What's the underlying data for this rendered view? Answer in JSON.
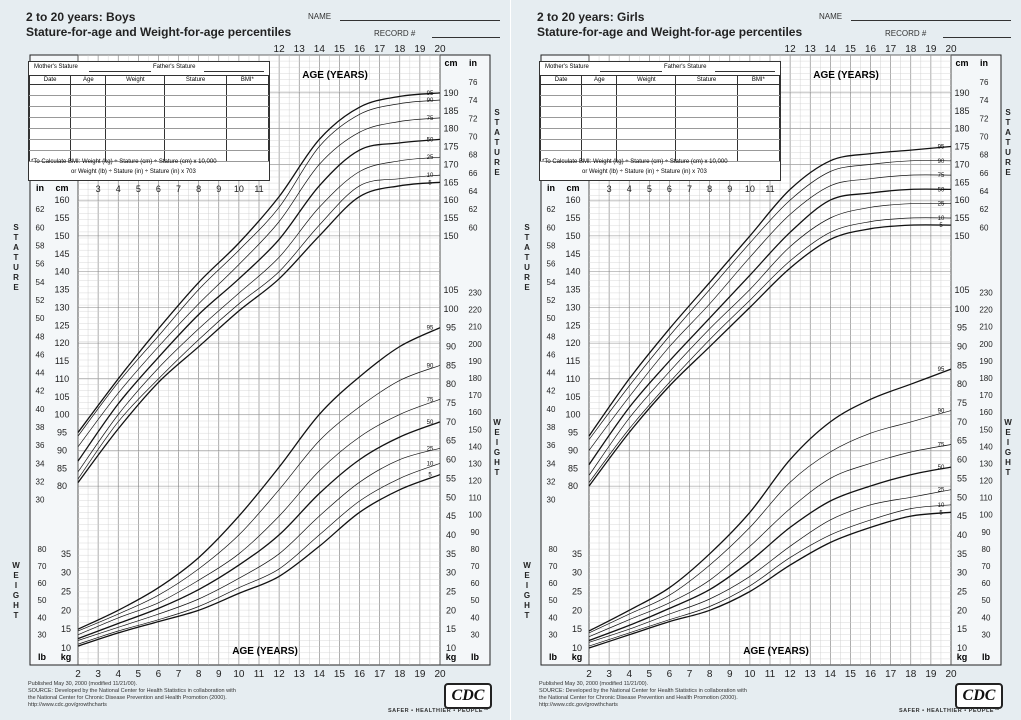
{
  "panels": [
    {
      "title_line1": "2 to 20 years: Boys",
      "title_line2": "Stature-for-age and Weight-for-age percentiles",
      "name_label": "NAME",
      "record_label": "RECORD #",
      "info_box": {
        "mothers_stature": "Mother's Stature",
        "fathers_stature": "Father's Stature",
        "columns": [
          "Date",
          "Age",
          "Weight",
          "Stature",
          "BMI*"
        ],
        "bmi_note_1": "*To Calculate BMI: Weight (kg) ÷ Stature (cm) ÷ Stature (cm) x 10,000",
        "bmi_note_2": "or Weight (lb) ÷ Stature (in) ÷ Stature (in) x 703"
      },
      "axis_labels": {
        "age_top": "AGE (YEARS)",
        "age_bottom": "AGE (YEARS)",
        "cm": "cm",
        "in": "in",
        "kg": "kg",
        "lb": "lb",
        "stature": "STATURE",
        "weight": "WEIGHT"
      },
      "footer": {
        "line1": "Published May 30, 2000 (modified 11/21/00).",
        "line2": "SOURCE: Developed by the National Center for Health Statistics in collaboration with",
        "line3": "the National Center for Chronic Disease Prevention and Health Promotion (2000).",
        "line4": "http://www.cdc.gov/growthcharts",
        "logo": "CDC",
        "tagline": "SAFER • HEALTHIER • PEOPLE™"
      },
      "chart_data": [
        {
          "type": "line",
          "title": "Stature-for-age",
          "xlabel": "AGE (YEARS)",
          "ylabel": "STATURE",
          "xlim": [
            2,
            20
          ],
          "ylim": [
            75,
            195
          ],
          "y_unit": "cm",
          "x": [
            2,
            4,
            6,
            8,
            10,
            12,
            14,
            16,
            18,
            20
          ],
          "series": [
            {
              "name": "95",
              "values": [
                95,
                110,
                124,
                137,
                148,
                161,
                177,
                186,
                189,
                190
              ]
            },
            {
              "name": "90",
              "values": [
                94,
                109,
                122,
                135,
                146,
                158,
                175,
                184,
                187,
                188
              ]
            },
            {
              "name": "75",
              "values": [
                91,
                106,
                119,
                131,
                142,
                154,
                170,
                179,
                182,
                183
              ]
            },
            {
              "name": "50",
              "values": [
                87,
                103,
                116,
                128,
                138,
                149,
                164,
                174,
                176,
                177
              ]
            },
            {
              "name": "25",
              "values": [
                84,
                100,
                113,
                124,
                134,
                144,
                158,
                168,
                171,
                172
              ]
            },
            {
              "name": "10",
              "values": [
                82,
                98,
                110,
                121,
                131,
                140,
                153,
                164,
                166,
                167
              ]
            },
            {
              "name": "5",
              "values": [
                81,
                96,
                109,
                119,
                129,
                138,
                150,
                161,
                164,
                165
              ]
            }
          ]
        },
        {
          "type": "line",
          "title": "Weight-for-age",
          "xlabel": "AGE (YEARS)",
          "ylabel": "WEIGHT",
          "xlim": [
            2,
            20
          ],
          "ylim": [
            10,
            105
          ],
          "y_unit": "kg",
          "x": [
            2,
            4,
            6,
            8,
            10,
            12,
            14,
            16,
            18,
            20
          ],
          "series": [
            {
              "name": "95",
              "values": [
                15,
                20,
                26,
                34,
                45,
                58,
                72,
                82,
                90,
                95
              ]
            },
            {
              "name": "90",
              "values": [
                14.5,
                19,
                24,
                31,
                40,
                52,
                65,
                74,
                81,
                85
              ]
            },
            {
              "name": "75",
              "values": [
                13.5,
                18,
                22,
                28,
                35,
                45,
                57,
                66,
                72,
                76
              ]
            },
            {
              "name": "50",
              "values": [
                12.5,
                16.5,
                20.5,
                25.5,
                32,
                40,
                51,
                60,
                66,
                70
              ]
            },
            {
              "name": "25",
              "values": [
                12,
                15.5,
                19,
                23,
                28.5,
                35,
                45,
                54,
                60,
                63
              ]
            },
            {
              "name": "10",
              "values": [
                11,
                14.5,
                17.5,
                21,
                26,
                31,
                40,
                49,
                55,
                59
              ]
            },
            {
              "name": "5",
              "values": [
                10.5,
                14,
                17,
                20,
                24.5,
                29,
                37,
                46,
                52,
                56
              ]
            }
          ]
        }
      ]
    },
    {
      "title_line1": "2 to 20 years: Girls",
      "title_line2": "Stature-for-age and Weight-for-age percentiles",
      "name_label": "NAME",
      "record_label": "RECORD #",
      "info_box": {
        "mothers_stature": "Mother's Stature",
        "fathers_stature": "Father's Stature",
        "columns": [
          "Date",
          "Age",
          "Weight",
          "Stature",
          "BMI*"
        ],
        "bmi_note_1": "*To Calculate BMI: Weight (kg) ÷ Stature (cm) ÷ Stature (cm) x 10,000",
        "bmi_note_2": "or Weight (lb) ÷ Stature (in) ÷ Stature (in) x 703"
      },
      "axis_labels": {
        "age_top": "AGE (YEARS)",
        "age_bottom": "AGE (YEARS)",
        "cm": "cm",
        "in": "in",
        "kg": "kg",
        "lb": "lb",
        "stature": "STATURE",
        "weight": "WEIGHT"
      },
      "footer": {
        "line1": "Published May 30, 2000 (modified 11/21/00).",
        "line2": "SOURCE: Developed by the National Center for Health Statistics in collaboration with",
        "line3": "the National Center for Chronic Disease Prevention and Health Promotion (2000).",
        "line4": "http://www.cdc.gov/growthcharts",
        "logo": "CDC",
        "tagline": "SAFER • HEALTHIER • PEOPLE™"
      },
      "chart_data": [
        {
          "type": "line",
          "title": "Stature-for-age",
          "xlabel": "AGE (YEARS)",
          "ylabel": "STATURE",
          "xlim": [
            2,
            20
          ],
          "ylim": [
            75,
            195
          ],
          "y_unit": "cm",
          "x": [
            2,
            4,
            6,
            8,
            10,
            12,
            14,
            16,
            18,
            20
          ],
          "series": [
            {
              "name": "95",
              "values": [
                94,
                110,
                124,
                137,
                150,
                163,
                171,
                173,
                174,
                175
              ]
            },
            {
              "name": "90",
              "values": [
                93,
                108,
                122,
                135,
                148,
                160,
                168,
                170,
                171,
                171
              ]
            },
            {
              "name": "75",
              "values": [
                90,
                105,
                119,
                131,
                144,
                156,
                164,
                166,
                167,
                167
              ]
            },
            {
              "name": "50",
              "values": [
                86,
                102,
                115,
                127,
                139,
                151,
                160,
                162,
                163,
                163
              ]
            },
            {
              "name": "25",
              "values": [
                83,
                99,
                112,
                124,
                135,
                147,
                155,
                158,
                159,
                159
              ]
            },
            {
              "name": "10",
              "values": [
                81,
                96,
                109,
                121,
                132,
                143,
                151,
                154,
                155,
                155
              ]
            },
            {
              "name": "5",
              "values": [
                80,
                95,
                108,
                119,
                130,
                141,
                149,
                152,
                153,
                153
              ]
            }
          ]
        },
        {
          "type": "line",
          "title": "Weight-for-age",
          "xlabel": "AGE (YEARS)",
          "ylabel": "WEIGHT",
          "xlim": [
            2,
            20
          ],
          "ylim": [
            10,
            105
          ],
          "y_unit": "kg",
          "x": [
            2,
            4,
            6,
            8,
            10,
            12,
            14,
            16,
            18,
            20
          ],
          "series": [
            {
              "name": "95",
              "values": [
                14.5,
                20,
                26,
                35,
                46,
                60,
                70,
                76,
                80,
                84
              ]
            },
            {
              "name": "90",
              "values": [
                14,
                19,
                24,
                32,
                42,
                54,
                62,
                67,
                70,
                73
              ]
            },
            {
              "name": "75",
              "values": [
                13,
                17.5,
                22,
                28,
                37,
                47,
                55,
                59,
                62,
                64
              ]
            },
            {
              "name": "50",
              "values": [
                12,
                16,
                20.5,
                25.5,
                33,
                42,
                49,
                53,
                56,
                58
              ]
            },
            {
              "name": "25",
              "values": [
                11.5,
                15,
                19,
                23,
                29,
                37,
                44,
                48,
                50,
                52
              ]
            },
            {
              "name": "10",
              "values": [
                10.5,
                14,
                17.5,
                21,
                26.5,
                34,
                40,
                44,
                47,
                48
              ]
            },
            {
              "name": "5",
              "values": [
                10,
                13.5,
                17,
                20,
                25,
                32,
                38,
                42,
                45,
                46
              ]
            }
          ]
        }
      ]
    }
  ]
}
